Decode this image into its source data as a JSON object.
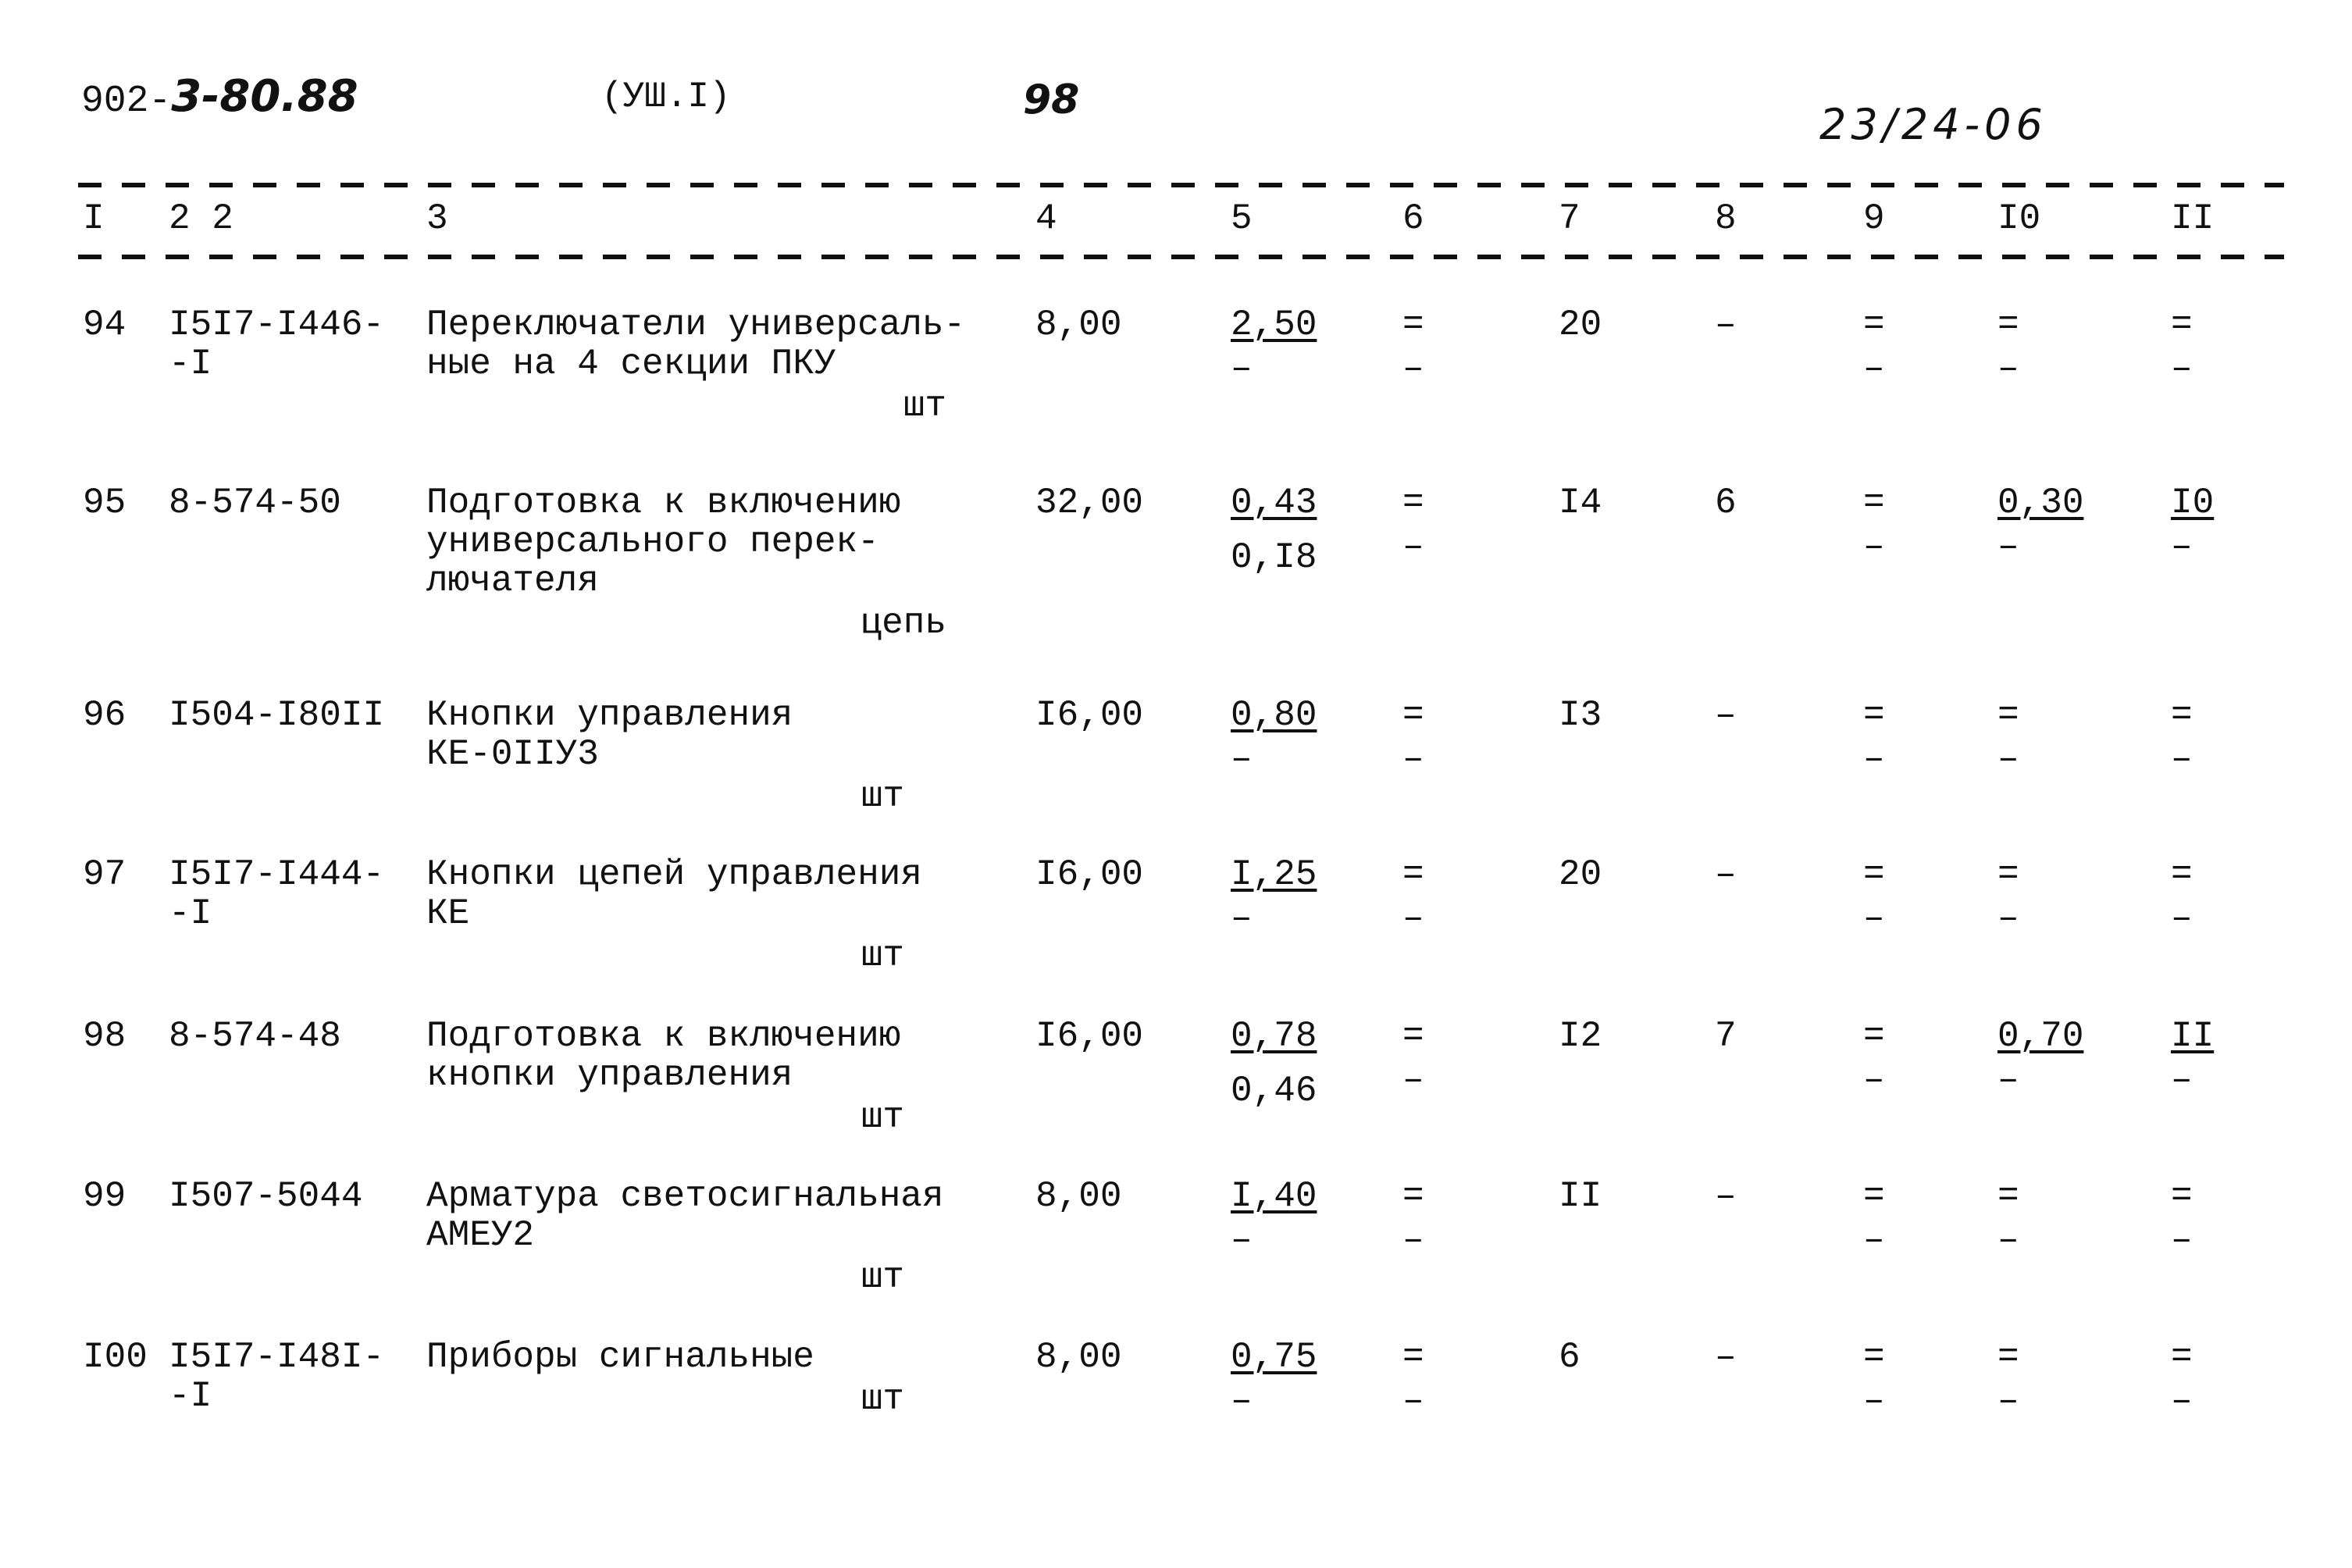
{
  "header": {
    "doc_code_typed": "902-",
    "doc_code_handwritten": "3-80.88",
    "section": "(УШ.I)",
    "page_number": "98",
    "archive_number": "23/24-06"
  },
  "columns": [
    "I",
    "2 2",
    "3",
    "4",
    "5",
    "6",
    "7",
    "8",
    "9",
    "I0",
    "II"
  ],
  "rows": [
    {
      "no": "94",
      "code": [
        "I5I7-I446-",
        "-I"
      ],
      "desc": [
        "Переключатели универсаль-",
        "ные на 4 секции ПКУ"
      ],
      "unit": "шт",
      "c4": "8,00",
      "c5": [
        "2,50",
        "–"
      ],
      "c6": [
        "=",
        "–"
      ],
      "c7": "20",
      "c8": "–",
      "c9": [
        "=",
        "–"
      ],
      "c10": [
        "=",
        "–"
      ],
      "c11": [
        "=",
        "–"
      ]
    },
    {
      "no": "95",
      "code": [
        "8-574-50"
      ],
      "desc": [
        "Подготовка к включению",
        "универсального перек-",
        "лючателя"
      ],
      "unit": "цепь",
      "c4": "32,00",
      "c5": [
        "0,43",
        "0,I8"
      ],
      "c6": [
        "=",
        "–"
      ],
      "c7": "I4",
      "c8": "6",
      "c9": [
        "=",
        "–"
      ],
      "c10": [
        "0,30",
        "–"
      ],
      "c11": [
        "I0",
        "–"
      ]
    },
    {
      "no": "96",
      "code": [
        "I504-I80II"
      ],
      "desc": [
        "Кнопки управления",
        "КЕ-0IIУ3"
      ],
      "unit": "шт",
      "c4": "I6,00",
      "c5": [
        "0,80",
        "–"
      ],
      "c6": [
        "=",
        "–"
      ],
      "c7": "I3",
      "c8": "–",
      "c9": [
        "=",
        "–"
      ],
      "c10": [
        "=",
        "–"
      ],
      "c11": [
        "=",
        "–"
      ]
    },
    {
      "no": "97",
      "code": [
        "I5I7-I444-",
        "-I"
      ],
      "desc": [
        "Кнопки цепей управления",
        "КЕ"
      ],
      "unit": "шт",
      "c4": "I6,00",
      "c5": [
        "I,25",
        "–"
      ],
      "c6": [
        "=",
        "–"
      ],
      "c7": "20",
      "c8": "–",
      "c9": [
        "=",
        "–"
      ],
      "c10": [
        "=",
        "–"
      ],
      "c11": [
        "=",
        "–"
      ]
    },
    {
      "no": "98",
      "code": [
        "8-574-48"
      ],
      "desc": [
        "Подготовка к включению",
        "кнопки управления"
      ],
      "unit": "шт",
      "c4": "I6,00",
      "c5": [
        "0,78",
        "0,46"
      ],
      "c6": [
        "=",
        "–"
      ],
      "c7": "I2",
      "c8": "7",
      "c9": [
        "=",
        "–"
      ],
      "c10": [
        "0,70",
        "–"
      ],
      "c11": [
        "II",
        "–"
      ]
    },
    {
      "no": "99",
      "code": [
        "I507-5044"
      ],
      "desc": [
        "Арматура светосигнальная",
        "АМЕУ2"
      ],
      "unit": "шт",
      "c4": "8,00",
      "c5": [
        "I,40",
        "–"
      ],
      "c6": [
        "=",
        "–"
      ],
      "c7": "II",
      "c8": "–",
      "c9": [
        "=",
        "–"
      ],
      "c10": [
        "=",
        "–"
      ],
      "c11": [
        "=",
        "–"
      ]
    },
    {
      "no": "I00",
      "code": [
        "I5I7-I48I-",
        "-I"
      ],
      "desc": [
        "Приборы сигнальные"
      ],
      "unit": "шт",
      "c4": "8,00",
      "c5": [
        "0,75",
        "–"
      ],
      "c6": [
        "=",
        "–"
      ],
      "c7": "6",
      "c8": "–",
      "c9": [
        "=",
        "–"
      ],
      "c10": [
        "=",
        "–"
      ],
      "c11": [
        "=",
        "–"
      ]
    }
  ]
}
